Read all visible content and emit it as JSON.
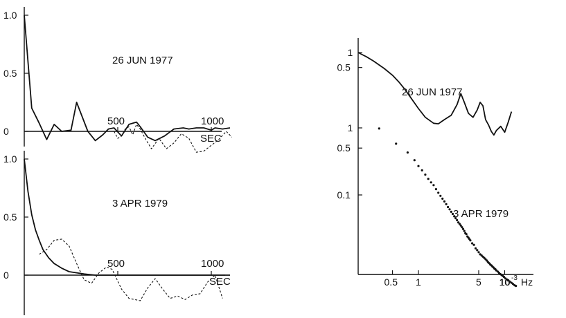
{
  "chart_data": [
    {
      "type": "line",
      "panel": "autocorrelation-1977",
      "annotation": "26 JUN 1977",
      "xlabel": "SEC",
      "ylabel": "",
      "xlim": [
        0,
        1200
      ],
      "ylim": [
        -0.3,
        1.0
      ],
      "x_ticks": [
        500,
        1000
      ],
      "y_ticks": [
        {
          "v": 1.0,
          "label": "1.0"
        },
        {
          "v": 0.5,
          "label": "0.5"
        },
        {
          "v": 0,
          "label": "0"
        }
      ],
      "series": [
        {
          "style": "solid",
          "x": [
            0,
            40,
            80,
            120,
            160,
            200,
            250,
            280,
            340,
            380,
            420,
            450,
            480,
            520,
            560,
            600,
            620,
            660,
            700,
            750,
            800,
            850,
            880,
            920,
            960,
            1000,
            1020,
            1060,
            1100
          ],
          "y": [
            1.0,
            0.2,
            0.07,
            -0.07,
            0.06,
            0.0,
            0.01,
            0.25,
            0.0,
            -0.08,
            -0.03,
            0.02,
            0.03,
            -0.04,
            0.06,
            0.08,
            0.04,
            -0.05,
            -0.08,
            -0.04,
            0.02,
            0.03,
            0.02,
            0.03,
            0.03,
            0.01,
            0.03,
            0.02,
            0.03
          ]
        },
        {
          "style": "dashed",
          "x": [
            480,
            500,
            520,
            540,
            560,
            580,
            600,
            620,
            650,
            680,
            720,
            760,
            800,
            840,
            880,
            920,
            960,
            1000,
            1040,
            1080,
            1110
          ],
          "y": [
            0.0,
            -0.06,
            -0.04,
            0.02,
            0.04,
            -0.03,
            0.06,
            0.02,
            -0.07,
            -0.15,
            -0.06,
            -0.15,
            -0.1,
            -0.02,
            -0.06,
            -0.18,
            -0.17,
            -0.12,
            -0.07,
            0.0,
            -0.05
          ]
        }
      ]
    },
    {
      "type": "line",
      "panel": "autocorrelation-1979",
      "annotation": "3 APR 1979",
      "xlabel": "SEC",
      "ylabel": "",
      "xlim": [
        0,
        1200
      ],
      "ylim": [
        -0.3,
        1.0
      ],
      "x_ticks": [
        500,
        1000
      ],
      "y_ticks": [
        {
          "v": 1.0,
          "label": "1.0"
        },
        {
          "v": 0.5,
          "label": "0.5"
        },
        {
          "v": 0,
          "label": "0"
        }
      ],
      "series": [
        {
          "style": "solid",
          "x": [
            0,
            20,
            40,
            60,
            80,
            100,
            130,
            160,
            200,
            240,
            280,
            320,
            380,
            420,
            500,
            600,
            700,
            800,
            900,
            1000,
            1100
          ],
          "y": [
            1.0,
            0.72,
            0.52,
            0.39,
            0.3,
            0.22,
            0.15,
            0.1,
            0.06,
            0.03,
            0.02,
            0.01,
            0.0,
            0.0,
            0.0,
            0.0,
            0.0,
            0.0,
            0.0,
            0.0,
            0.0
          ]
        },
        {
          "style": "dashed",
          "x": [
            80,
            120,
            160,
            200,
            240,
            280,
            320,
            360,
            400,
            440,
            470,
            520,
            560,
            620,
            660,
            700,
            740,
            780,
            820,
            860,
            900,
            940,
            980,
            1020,
            1060
          ],
          "y": [
            0.18,
            0.22,
            0.3,
            0.31,
            0.25,
            0.1,
            -0.04,
            -0.07,
            0.02,
            0.07,
            0.05,
            -0.12,
            -0.2,
            -0.22,
            -0.11,
            -0.03,
            -0.12,
            -0.2,
            -0.18,
            -0.21,
            -0.17,
            -0.16,
            -0.06,
            0.0,
            -0.2
          ]
        }
      ]
    },
    {
      "type": "line",
      "panel": "power-spectra",
      "xlabel": "10",
      "xlabel_exp": "-3",
      "xlabel_unit": "Hz",
      "x_scale": "log",
      "y_scale": "log",
      "x_ticks": [
        {
          "v": 0.5,
          "label": "0.5"
        },
        {
          "v": 1,
          "label": "1"
        },
        {
          "v": 5,
          "label": "5"
        },
        {
          "v": 10,
          "label": "10"
        }
      ],
      "series": [
        {
          "name": "26 JUN 1977",
          "style": "solid",
          "y_ticks": [
            {
              "v": 1,
              "label": "1"
            },
            {
              "v": 0.5,
              "label": "0.5"
            }
          ],
          "x": [
            0.2,
            0.25,
            0.3,
            0.4,
            0.5,
            0.6,
            0.7,
            0.8,
            1.0,
            1.2,
            1.5,
            1.7,
            2.0,
            2.4,
            2.8,
            3.1,
            3.4,
            3.8,
            4.3,
            4.8,
            5.2,
            5.6,
            6.0,
            6.5,
            7.0,
            7.5,
            8.0,
            9.0,
            10.0,
            11.0,
            12.0
          ],
          "y": [
            1.0,
            0.82,
            0.68,
            0.48,
            0.35,
            0.25,
            0.18,
            0.13,
            0.075,
            0.05,
            0.038,
            0.037,
            0.045,
            0.055,
            0.09,
            0.15,
            0.1,
            0.06,
            0.05,
            0.07,
            0.1,
            0.085,
            0.045,
            0.035,
            0.026,
            0.022,
            0.027,
            0.033,
            0.025,
            0.04,
            0.065
          ]
        },
        {
          "name": "3 APR 1979",
          "style": "dotted",
          "y_ticks": [
            {
              "v": 1,
              "label": "1"
            },
            {
              "v": 0.5,
              "label": "0.5"
            },
            {
              "v": 0.1,
              "label": "0.1"
            }
          ],
          "x": [
            0.35,
            0.55,
            0.75,
            0.9,
            1.0,
            1.1,
            1.2,
            1.3,
            1.4,
            1.5,
            1.6,
            1.7,
            1.8,
            1.9,
            2.0,
            2.1,
            2.2,
            2.3,
            2.4,
            2.5,
            2.6,
            2.7,
            2.8,
            2.9,
            3.0,
            3.1,
            3.2,
            3.3,
            3.4,
            3.5,
            3.6,
            3.7,
            3.8,
            3.9,
            4.0,
            4.2,
            4.4,
            4.6,
            4.8,
            5.0,
            5.2,
            5.4,
            5.6,
            5.8,
            6.0,
            6.2,
            6.4,
            6.6,
            6.8,
            7.0,
            7.2,
            7.4,
            7.6,
            7.8,
            8.0,
            8.3,
            8.6,
            8.9,
            9.2,
            9.5,
            9.8,
            10.2,
            10.6,
            11.0,
            11.5,
            12.0,
            12.5,
            13.0,
            13.5
          ],
          "y": [
            0.98,
            0.58,
            0.43,
            0.33,
            0.27,
            0.233,
            0.201,
            0.174,
            0.154,
            0.14,
            0.122,
            0.108,
            0.097,
            0.088,
            0.08,
            0.073,
            0.066,
            0.061,
            0.056,
            0.052,
            0.048,
            0.045,
            0.042,
            0.039,
            0.037,
            0.035,
            0.033,
            0.031,
            0.029,
            0.027,
            0.026,
            0.024,
            0.023,
            0.022,
            0.021,
            0.019,
            0.018,
            0.016,
            0.015,
            0.014,
            0.013,
            0.0125,
            0.012,
            0.0115,
            0.011,
            0.0105,
            0.01,
            0.0096,
            0.0092,
            0.0089,
            0.0086,
            0.0083,
            0.008,
            0.0078,
            0.0075,
            0.0072,
            0.0069,
            0.0066,
            0.0064,
            0.0062,
            0.006,
            0.0057,
            0.0055,
            0.0053,
            0.0051,
            0.0049,
            0.0047,
            0.0045,
            0.0044
          ]
        }
      ]
    }
  ]
}
